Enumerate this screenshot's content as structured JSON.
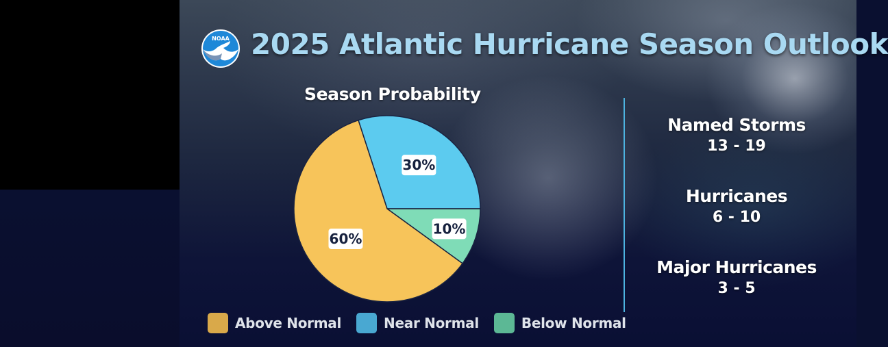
{
  "header": {
    "title": "2025 Atlantic Hurricane Season Outlook",
    "logo_text": "NOAA"
  },
  "chart_data": {
    "type": "pie",
    "title": "Season Probability",
    "categories": [
      "Above Normal",
      "Near Normal",
      "Below Normal"
    ],
    "values": [
      60,
      30,
      10
    ],
    "value_labels": [
      "60%",
      "30%",
      "10%"
    ],
    "colors": [
      "#f7c45a",
      "#5ccbef",
      "#7fdcb7"
    ],
    "legend_colors": [
      "#d9a94a",
      "#49a8d2",
      "#5cb895"
    ],
    "legend": "bottom"
  },
  "stats": [
    {
      "label": "Named Storms",
      "value": "13 - 19"
    },
    {
      "label": "Hurricanes",
      "value": "6 - 10"
    },
    {
      "label": "Major Hurricanes",
      "value": "3 - 5"
    }
  ],
  "colors": {
    "title": "#a9d9f2",
    "divider": "#4db3e0",
    "pie_outline": "#1a2340"
  }
}
